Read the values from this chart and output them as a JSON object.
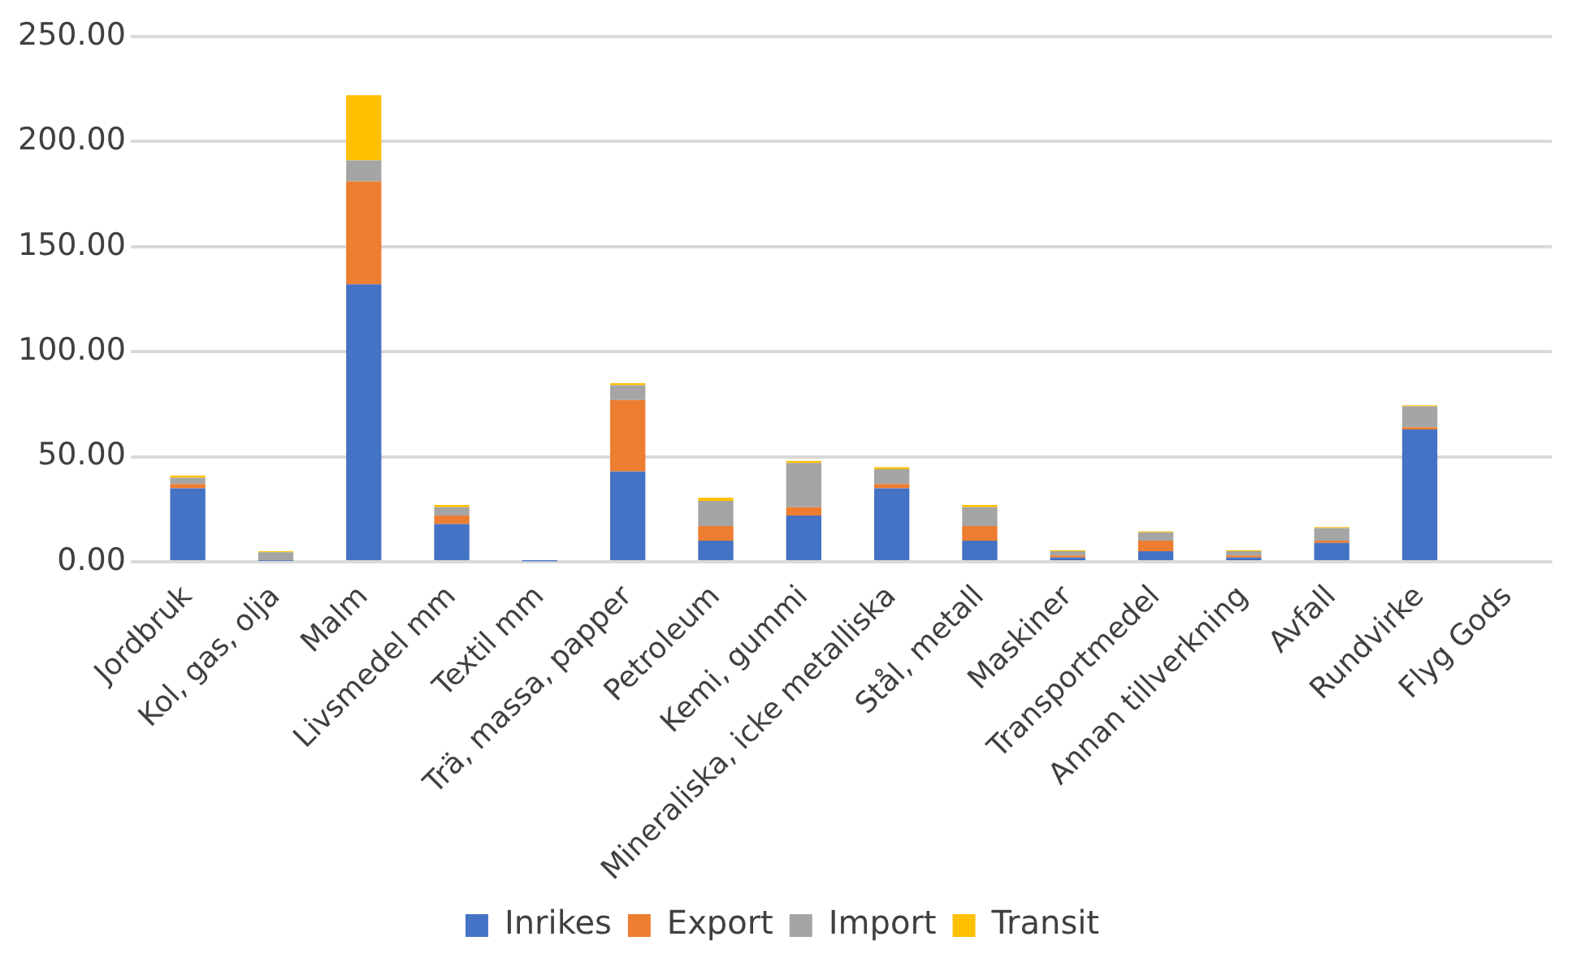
{
  "chart_data": {
    "type": "bar",
    "stacked": true,
    "categories": [
      "Jordbruk",
      "Kol, gas, olja",
      "Malm",
      "Livsmedel mm",
      "Textil mm",
      "Trä, massa, papper",
      "Petroleum",
      "Kemi, gummi",
      "Mineraliska, icke metalliska",
      "Stål, metall",
      "Maskiner",
      "Transportmedel",
      "Annan tillverkning",
      "Avfall",
      "Rundvirke",
      "Flyg Gods"
    ],
    "series": [
      {
        "name": "Inrikes",
        "color": "#4472c4",
        "values": [
          35,
          0.5,
          132,
          18,
          0.3,
          43,
          10,
          22,
          35,
          10,
          2,
          5,
          2,
          9,
          63,
          0
        ]
      },
      {
        "name": "Export",
        "color": "#ed7d31",
        "values": [
          2,
          0,
          49,
          4,
          0,
          34,
          7,
          4,
          2,
          7,
          1,
          5,
          1,
          1,
          1,
          0
        ]
      },
      {
        "name": "Import",
        "color": "#a5a5a5",
        "values": [
          3,
          4,
          10,
          4,
          0.3,
          7,
          12,
          21,
          7,
          9,
          2,
          4,
          2,
          6,
          10,
          0
        ]
      },
      {
        "name": "Transit",
        "color": "#ffc000",
        "values": [
          1,
          0.5,
          31,
          1,
          0,
          1,
          1.5,
          1,
          1,
          1,
          0.5,
          0.5,
          0.5,
          0.5,
          0.5,
          0
        ]
      }
    ],
    "ylim": [
      0,
      250
    ],
    "yticks": [
      {
        "value": 0,
        "label": "0.00"
      },
      {
        "value": 50,
        "label": "50.00"
      },
      {
        "value": 100,
        "label": "100.00"
      },
      {
        "value": 150,
        "label": "150.00"
      },
      {
        "value": 200,
        "label": "200.00"
      },
      {
        "value": 250,
        "label": "250.00"
      }
    ],
    "grid": "y",
    "legend": "bottom"
  }
}
